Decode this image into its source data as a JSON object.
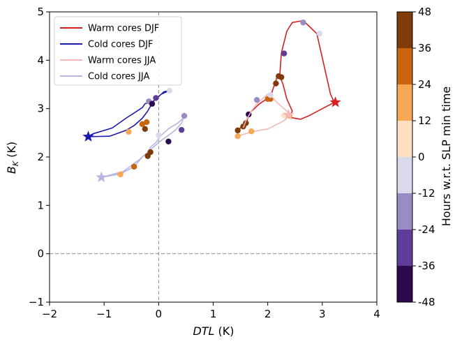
{
  "chart_data": {
    "type": "line",
    "title": "",
    "xlabel_main": "DTL",
    "xlabel_unit": " (K)",
    "ylabel_main": "B",
    "ylabel_sub": "K",
    "ylabel_unit": " (K)",
    "xlim": [
      -2,
      4
    ],
    "ylim": [
      -1,
      5
    ],
    "xticks": [
      "−2",
      "−1",
      "0",
      "1",
      "2",
      "3",
      "4"
    ],
    "yticks": [
      "−1",
      "0",
      "1",
      "2",
      "3",
      "4",
      "5"
    ],
    "grid": false,
    "reference_lines": [
      {
        "axis": "x",
        "value": 0
      },
      {
        "axis": "y",
        "value": 0
      }
    ],
    "legend_position": "upper-left",
    "colorbar": {
      "label": "Hours w.r.t. SLP min time",
      "ticks": [
        "48",
        "36",
        "24",
        "12",
        "0",
        "-12",
        "-24",
        "-36",
        "-48"
      ],
      "bins": [
        {
          "from": -48,
          "to": -36,
          "color": "#2d0a4e"
        },
        {
          "from": -36,
          "to": -24,
          "color": "#5e3c99"
        },
        {
          "from": -24,
          "to": -12,
          "color": "#9a8bc4"
        },
        {
          "from": -12,
          "to": 0,
          "color": "#dad9ec"
        },
        {
          "from": 0,
          "to": 12,
          "color": "#fde0c2"
        },
        {
          "from": 12,
          "to": 24,
          "color": "#f6a854"
        },
        {
          "from": 24,
          "to": 36,
          "color": "#c9640f"
        },
        {
          "from": 36,
          "to": 48,
          "color": "#7f3b08"
        }
      ]
    },
    "series": [
      {
        "name": "Warm cores DJF",
        "color": "#d62020",
        "line_width": 1.6,
        "x": [
          1.45,
          1.47,
          1.55,
          1.6,
          1.65,
          2.05,
          2.15,
          2.2,
          2.25,
          2.3,
          2.35,
          2.4,
          2.45,
          2.55,
          2.8,
          3.25,
          3.2,
          3.0,
          2.75,
          2.6,
          2.45,
          2.3,
          2.23,
          2.22,
          2.2,
          2.25,
          2.3,
          2.38,
          2.45,
          2.55,
          2.7,
          2.65,
          2.45,
          2.35
        ],
        "y": [
          2.55,
          2.45,
          2.6,
          2.7,
          2.88,
          3.2,
          3.52,
          3.6,
          3.65,
          3.5,
          3.3,
          2.95,
          2.85,
          2.8,
          2.85,
          3.13,
          3.4,
          4.55,
          4.82,
          4.8,
          4.65,
          4.2,
          3.7,
          3.6,
          3.4,
          3.2,
          3.1,
          2.9,
          2.86,
          2.8,
          2.85,
          2.82,
          2.85,
          2.9
        ],
        "drawn_x": [
          1.45,
          1.55,
          1.62,
          1.66,
          1.85,
          2.05,
          2.14,
          2.18,
          2.23,
          2.28,
          2.35,
          2.45,
          2.4,
          2.6,
          2.75,
          3.22,
          3.15,
          2.9,
          2.65,
          2.45,
          2.35,
          2.25,
          2.22
        ],
        "drawn_y": [
          2.55,
          2.65,
          2.75,
          2.9,
          3.1,
          3.25,
          3.55,
          3.68,
          3.65,
          3.5,
          3.2,
          2.95,
          2.82,
          2.78,
          2.85,
          3.13,
          3.3,
          4.55,
          4.82,
          4.78,
          4.6,
          4.15,
          3.68
        ],
        "marker_x": [
          1.45,
          1.55,
          1.6,
          1.65,
          2.05,
          2.15,
          2.2,
          2.25,
          2.3,
          2.4,
          2.65,
          2.95
        ],
        "marker_y": [
          2.55,
          2.63,
          2.7,
          2.88,
          3.2,
          3.52,
          3.67,
          3.65,
          4.14,
          2.85,
          4.78,
          4.55
        ],
        "marker_hours": [
          42,
          40,
          38,
          -42,
          30,
          40,
          44,
          44,
          -30,
          18,
          -14,
          -6
        ],
        "star": [
          3.24,
          3.13
        ]
      },
      {
        "name": "Cold cores DJF",
        "color": "#1a1aaa",
        "line_width": 1.6,
        "drawn_x": [
          -1.3,
          -1.2,
          -0.85,
          -0.6,
          -0.3,
          -0.25,
          -0.2,
          -0.1,
          -0.05,
          0.05,
          0.15,
          0.2,
          0.1,
          -0.1,
          -0.2,
          -0.3,
          -0.45,
          -0.6,
          -0.9,
          -1.3
        ],
        "drawn_y": [
          2.42,
          2.48,
          2.6,
          2.8,
          3.02,
          3.1,
          3.12,
          3.15,
          3.2,
          3.3,
          3.35,
          3.37,
          3.35,
          3.15,
          2.95,
          2.8,
          2.65,
          2.55,
          2.43,
          2.42
        ],
        "marker_x": [
          -0.55,
          -0.3,
          -0.25,
          -0.22,
          -0.18,
          -0.12,
          -0.05,
          0.2
        ],
        "marker_y": [
          2.52,
          2.68,
          2.58,
          2.72,
          3.15,
          3.1,
          3.22,
          3.37
        ],
        "marker_hours": [
          18,
          26,
          40,
          30,
          -14,
          -42,
          -30,
          -10
        ],
        "star": [
          -1.29,
          2.42
        ]
      },
      {
        "name": "Warm cores JJA",
        "color": "#f4b6b6",
        "line_width": 1.6,
        "drawn_x": [
          1.45,
          1.7,
          2.0,
          2.3,
          2.42,
          2.3,
          2.15,
          2.05,
          2.0,
          1.95,
          1.9,
          1.8,
          1.7,
          1.6,
          1.55
        ],
        "drawn_y": [
          2.43,
          2.52,
          2.58,
          2.75,
          2.88,
          3.0,
          3.15,
          3.28,
          3.3,
          3.25,
          3.2,
          3.1,
          2.95,
          2.75,
          2.6
        ],
        "marker_x": [
          1.45,
          1.7,
          1.8,
          2.0,
          2.05,
          2.3
        ],
        "marker_y": [
          2.43,
          2.53,
          3.18,
          3.2,
          3.28,
          2.86
        ],
        "marker_hours": [
          22,
          20,
          -16,
          32,
          -4,
          12
        ],
        "star": [
          2.38,
          2.87
        ]
      },
      {
        "name": "Cold cores JJA",
        "color": "#b6b6e0",
        "line_width": 1.6,
        "drawn_x": [
          -1.05,
          -0.7,
          -0.45,
          -0.3,
          -0.2,
          -0.15,
          -0.05,
          0.05,
          0.2,
          0.35,
          0.45,
          0.47,
          0.42,
          0.3,
          0.18,
          0.0,
          -0.15,
          -0.35,
          -0.65,
          -1.05
        ],
        "drawn_y": [
          1.58,
          1.65,
          1.8,
          2.0,
          2.1,
          2.2,
          2.3,
          2.45,
          2.6,
          2.7,
          2.8,
          2.85,
          2.7,
          2.55,
          2.45,
          2.3,
          2.15,
          1.95,
          1.7,
          1.58
        ],
        "marker_x": [
          -0.7,
          -0.45,
          -0.2,
          -0.15,
          0.0,
          0.18,
          0.42,
          0.47
        ],
        "marker_y": [
          1.64,
          1.8,
          2.02,
          2.1,
          2.45,
          2.32,
          2.56,
          2.85
        ],
        "marker_hours": [
          20,
          30,
          42,
          38,
          -4,
          -44,
          -30,
          -14
        ],
        "star": [
          -1.05,
          1.58
        ]
      }
    ]
  }
}
